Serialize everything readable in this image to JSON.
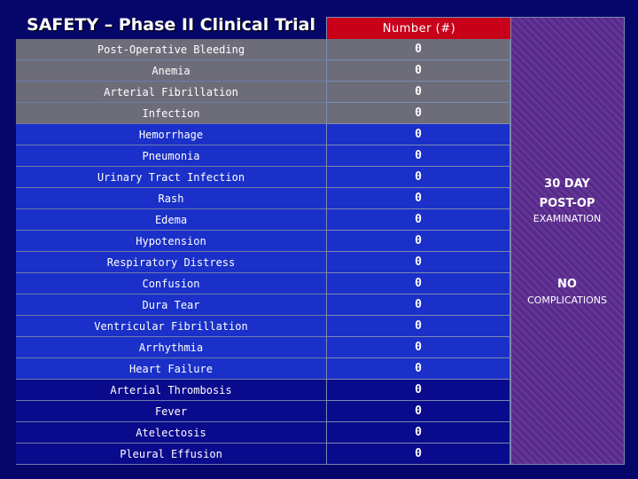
{
  "title": "SAFETY – Phase II Clinical Trial",
  "header": "Number (#)",
  "rows": [
    {
      "name": "Post-Operative Bleeding",
      "value": "0",
      "shade": "gray"
    },
    {
      "name": "Anemia",
      "value": "0",
      "shade": "gray"
    },
    {
      "name": "Arterial Fibrillation",
      "value": "0",
      "shade": "gray"
    },
    {
      "name": "Infection",
      "value": "0",
      "shade": "gray"
    },
    {
      "name": "Hemorrhage",
      "value": "0",
      "shade": "blue"
    },
    {
      "name": "Pneumonia",
      "value": "0",
      "shade": "blue"
    },
    {
      "name": "Urinary Tract Infection",
      "value": "0",
      "shade": "blue"
    },
    {
      "name": "Rash",
      "value": "0",
      "shade": "blue"
    },
    {
      "name": "Edema",
      "value": "0",
      "shade": "blue"
    },
    {
      "name": "Hypotension",
      "value": "0",
      "shade": "blue"
    },
    {
      "name": "Respiratory Distress",
      "value": "0",
      "shade": "blue"
    },
    {
      "name": "Confusion",
      "value": "0",
      "shade": "blue"
    },
    {
      "name": "Dura Tear",
      "value": "0",
      "shade": "blue"
    },
    {
      "name": "Ventricular Fibrillation",
      "value": "0",
      "shade": "blue"
    },
    {
      "name": "Arrhythmia",
      "value": "0",
      "shade": "blue"
    },
    {
      "name": "Heart Failure",
      "value": "0",
      "shade": "blue"
    },
    {
      "name": "Arterial Thrombosis",
      "value": "0",
      "shade": "dark"
    },
    {
      "name": "Fever",
      "value": "0",
      "shade": "dark"
    },
    {
      "name": "Atelectosis",
      "value": "0",
      "shade": "dark"
    },
    {
      "name": "Pleural Effusion",
      "value": "0",
      "shade": "dark"
    }
  ],
  "side": {
    "line1": "30 DAY",
    "line2": "POST-OP",
    "line3": "EXAMINATION",
    "line4": "NO",
    "line5": "COMPLICATIONS"
  },
  "colors": {
    "header_red": "#c8001a",
    "row_gray": "#6d6d7a",
    "row_blue": "#1a30c8",
    "row_dark": "#0a0a8c",
    "side_purple": "#5a2c8c",
    "background": "#06066a"
  }
}
